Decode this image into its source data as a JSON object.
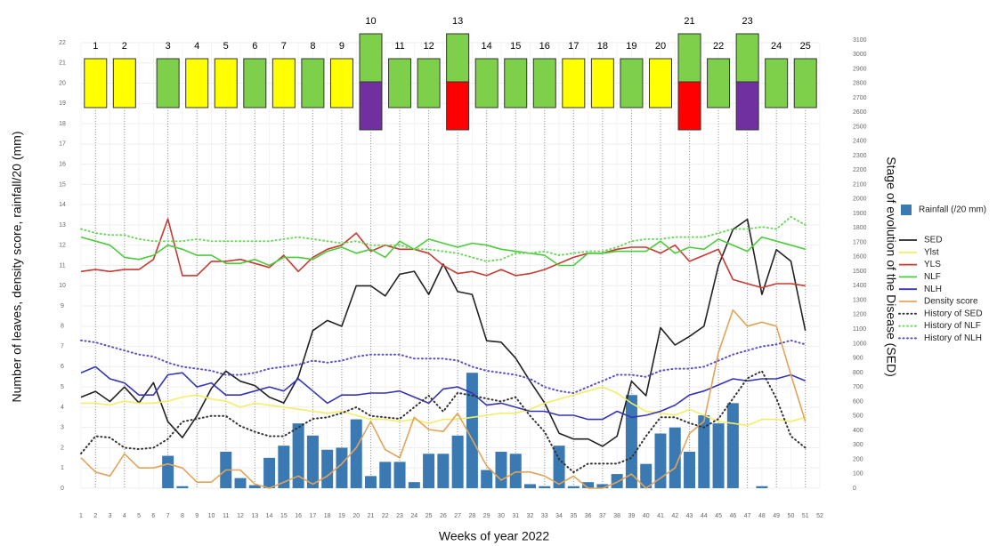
{
  "chart_data": {
    "type": "combo",
    "x_label": "Weeks of year 2022",
    "y_label": "Number of leaves, density score, rainfall/20 (mm)",
    "y2_label": "Stage of evolution of the Disease (SED)",
    "x": [
      1,
      2,
      3,
      4,
      5,
      6,
      7,
      8,
      9,
      10,
      11,
      12,
      13,
      14,
      15,
      16,
      17,
      18,
      19,
      20,
      21,
      22,
      23,
      24,
      25,
      26,
      27,
      28,
      29,
      30,
      31,
      32,
      33,
      34,
      35,
      36,
      37,
      38,
      39,
      40,
      41,
      42,
      43,
      44,
      45,
      46,
      47,
      48,
      49,
      50,
      51
    ],
    "xlim": [
      1,
      52
    ],
    "xticks": [
      1,
      2,
      3,
      4,
      5,
      6,
      7,
      8,
      9,
      10,
      11,
      12,
      13,
      14,
      15,
      16,
      17,
      18,
      19,
      20,
      21,
      22,
      23,
      24,
      25,
      26,
      27,
      28,
      29,
      30,
      31,
      32,
      33,
      34,
      35,
      36,
      37,
      38,
      39,
      40,
      41,
      42,
      43,
      44,
      45,
      46,
      47,
      48,
      49,
      50,
      51,
      52
    ],
    "ylim": [
      0,
      22
    ],
    "yticks": [
      0,
      1,
      2,
      3,
      4,
      5,
      6,
      7,
      8,
      9,
      10,
      11,
      12,
      13,
      14,
      15,
      16,
      17,
      18,
      19,
      20,
      21,
      22
    ],
    "y2lim": [
      0,
      3100
    ],
    "y2ticks": [
      0,
      100,
      200,
      300,
      400,
      500,
      600,
      700,
      800,
      900,
      1000,
      1100,
      1200,
      1300,
      1400,
      1500,
      1600,
      1700,
      1800,
      1900,
      2000,
      2100,
      2200,
      2300,
      2400,
      2500,
      2600,
      2700,
      2800,
      2900,
      3000,
      3100
    ],
    "grid": true,
    "legend": "right",
    "series": [
      {
        "name": "Rainfall (/20 mm)",
        "type": "bar",
        "color": "#3b79b3",
        "values": [
          0,
          0,
          0,
          0,
          0,
          0,
          1.6,
          0.1,
          0,
          0,
          1.8,
          0.5,
          0.15,
          1.5,
          2.1,
          3.2,
          2.6,
          1.9,
          2.0,
          3.4,
          0.6,
          1.3,
          1.3,
          0.3,
          1.7,
          1.7,
          2.6,
          5.7,
          0.9,
          1.8,
          1.7,
          0.2,
          0.1,
          2.1,
          0.1,
          0.3,
          0.2,
          0.7,
          4.6,
          1.2,
          2.7,
          3.0,
          1.8,
          3.6,
          3.2,
          4.2,
          0,
          0.1,
          0,
          0,
          0
        ]
      },
      {
        "name": "SED",
        "type": "line",
        "axis": "y2",
        "color": "#222222",
        "values": [
          630,
          670,
          600,
          700,
          590,
          730,
          460,
          350,
          500,
          690,
          810,
          740,
          710,
          630,
          590,
          770,
          1090,
          1160,
          1120,
          1400,
          1400,
          1330,
          1480,
          1500,
          1340,
          1550,
          1360,
          1340,
          1020,
          1010,
          900,
          740,
          590,
          380,
          340,
          340,
          290,
          360,
          740,
          640,
          1110,
          990,
          1050,
          1120,
          1540,
          1790,
          1860,
          1340,
          1650,
          1570,
          1090
        ]
      },
      {
        "name": "Ylst",
        "type": "line",
        "color": "#f2ee6a",
        "values": [
          4.2,
          4.2,
          4.1,
          4.3,
          4.2,
          4.2,
          4.3,
          4.5,
          4.6,
          4.4,
          4.3,
          4.0,
          4.2,
          4.1,
          4.0,
          3.9,
          3.8,
          3.7,
          3.8,
          3.6,
          3.4,
          3.4,
          3.3,
          3.4,
          3.2,
          3.4,
          3.4,
          3.5,
          3.6,
          3.7,
          3.7,
          3.9,
          4.2,
          4.4,
          4.6,
          4.8,
          5.0,
          4.7,
          4.2,
          3.8,
          3.7,
          3.6,
          3.9,
          3.6,
          3.3,
          3.2,
          3.1,
          3.4,
          3.4,
          3.3,
          3.5
        ]
      },
      {
        "name": "YLS",
        "type": "line",
        "color": "#c83a32",
        "values": [
          10.7,
          10.8,
          10.7,
          10.8,
          10.8,
          11.3,
          13.3,
          10.5,
          10.5,
          11.2,
          11.2,
          11.3,
          11.1,
          10.9,
          11.5,
          10.7,
          11.4,
          11.8,
          12.0,
          12.6,
          11.7,
          12.0,
          11.8,
          11.8,
          11.6,
          11.0,
          10.6,
          10.7,
          10.5,
          10.8,
          10.5,
          10.6,
          10.8,
          11.1,
          11.4,
          11.6,
          11.6,
          11.8,
          11.9,
          11.9,
          11.6,
          12.0,
          11.2,
          11.5,
          11.8,
          10.3,
          10.1,
          9.9,
          10.1,
          10.1,
          10.0
        ]
      },
      {
        "name": "NLF",
        "type": "line",
        "color": "#4ccc3c",
        "values": [
          12.4,
          12.2,
          12.0,
          11.4,
          11.3,
          11.5,
          12.0,
          11.8,
          11.5,
          11.5,
          11.1,
          11.1,
          11.3,
          11.0,
          11.4,
          11.4,
          11.3,
          11.7,
          11.9,
          11.6,
          11.8,
          11.4,
          12.2,
          11.8,
          12.3,
          12.1,
          11.9,
          12.1,
          12.0,
          11.8,
          11.7,
          11.6,
          11.5,
          11.0,
          11.0,
          11.6,
          11.6,
          11.7,
          11.7,
          11.7,
          12.2,
          11.6,
          11.9,
          11.8,
          12.3,
          12.0,
          11.7,
          12.4,
          12.2,
          12.0,
          11.8
        ]
      },
      {
        "name": "NLH",
        "type": "line",
        "color": "#3535b8",
        "values": [
          5.7,
          6.0,
          5.4,
          5.2,
          4.6,
          4.6,
          5.6,
          5.7,
          5.0,
          5.2,
          4.6,
          4.6,
          4.8,
          5.0,
          4.8,
          5.4,
          4.8,
          4.2,
          4.6,
          4.6,
          4.7,
          4.7,
          4.8,
          4.5,
          4.2,
          4.9,
          5.0,
          4.7,
          4.1,
          4.2,
          4.0,
          3.8,
          3.8,
          3.6,
          3.6,
          3.4,
          3.4,
          3.8,
          3.5,
          3.6,
          3.8,
          4.1,
          4.6,
          4.8,
          5.1,
          5.4,
          5.3,
          5.4,
          5.4,
          5.6,
          5.3
        ]
      },
      {
        "name": "Density score",
        "type": "line",
        "color": "#e2a458",
        "values": [
          1.5,
          0.8,
          0.6,
          1.7,
          1.0,
          1.0,
          1.2,
          1.0,
          0.3,
          0.3,
          0.9,
          0.9,
          0.2,
          0,
          0.3,
          0.6,
          0.2,
          0.6,
          1.2,
          2.0,
          3.3,
          1.9,
          1.5,
          3.5,
          2.9,
          2.8,
          3.7,
          2.4,
          1.1,
          0.4,
          0.8,
          0.8,
          0.6,
          0.2,
          0.6,
          0,
          0,
          0.3,
          0.7,
          0,
          0.5,
          1.0,
          2.7,
          3.3,
          6.7,
          8.8,
          8.0,
          8.2,
          8.0,
          5.6,
          3.3
        ]
      },
      {
        "name": "History of SED",
        "type": "line",
        "style": "dotted",
        "axis": "y2",
        "color": "#333333",
        "values": [
          240,
          360,
          350,
          280,
          270,
          280,
          340,
          460,
          480,
          500,
          500,
          430,
          390,
          360,
          360,
          420,
          480,
          490,
          520,
          560,
          500,
          490,
          480,
          560,
          640,
          530,
          660,
          640,
          620,
          600,
          630,
          500,
          390,
          200,
          110,
          170,
          170,
          170,
          210,
          360,
          490,
          490,
          450,
          420,
          480,
          620,
          760,
          810,
          620,
          360,
          280
        ]
      },
      {
        "name": "History of NLF",
        "type": "line",
        "style": "dotted",
        "color": "#6ed860",
        "values": [
          12.8,
          12.6,
          12.5,
          12.5,
          12.3,
          12.2,
          12.2,
          12.2,
          12.3,
          12.2,
          12.2,
          12.2,
          12.2,
          12.2,
          12.3,
          12.4,
          12.3,
          12.2,
          12.1,
          12.2,
          12.0,
          12.0,
          12.0,
          11.8,
          11.8,
          11.7,
          11.6,
          11.4,
          11.2,
          11.3,
          11.6,
          11.6,
          11.7,
          11.5,
          11.6,
          11.7,
          11.7,
          11.9,
          12.2,
          12.3,
          12.3,
          12.4,
          12.4,
          12.4,
          12.6,
          12.8,
          12.8,
          12.9,
          12.8,
          13.4,
          13.0
        ]
      },
      {
        "name": "History of NLH",
        "type": "line",
        "style": "dotted",
        "color": "#5a50c8",
        "values": [
          7.3,
          7.2,
          7.0,
          6.8,
          6.6,
          6.5,
          6.2,
          6.0,
          5.9,
          5.8,
          5.6,
          5.6,
          5.7,
          5.9,
          6.0,
          6.1,
          6.3,
          6.2,
          6.3,
          6.5,
          6.6,
          6.6,
          6.6,
          6.4,
          6.4,
          6.4,
          6.3,
          6.0,
          5.8,
          5.7,
          5.6,
          5.4,
          5.0,
          4.8,
          4.7,
          5.0,
          5.3,
          5.6,
          5.6,
          5.5,
          5.8,
          5.9,
          5.9,
          6.0,
          6.3,
          6.6,
          6.8,
          7.0,
          7.1,
          7.3,
          7.1
        ]
      }
    ],
    "stages": [
      {
        "label": "1",
        "week": 2,
        "colors": [
          "#ffff00"
        ]
      },
      {
        "label": "2",
        "week": 4,
        "colors": [
          "#ffff00"
        ]
      },
      {
        "label": "3",
        "week": 7,
        "colors": [
          "#7ed04b"
        ]
      },
      {
        "label": "4",
        "week": 9,
        "colors": [
          "#ffff00"
        ]
      },
      {
        "label": "5",
        "week": 11,
        "colors": [
          "#ffff00"
        ]
      },
      {
        "label": "6",
        "week": 13,
        "colors": [
          "#7ed04b"
        ]
      },
      {
        "label": "7",
        "week": 15,
        "colors": [
          "#ffff00"
        ]
      },
      {
        "label": "8",
        "week": 17,
        "colors": [
          "#7ed04b"
        ]
      },
      {
        "label": "9",
        "week": 19,
        "colors": [
          "#ffff00"
        ]
      },
      {
        "label": "10",
        "week": 21,
        "colors": [
          "#7ed04b",
          "#7030a0"
        ]
      },
      {
        "label": "11",
        "week": 23,
        "colors": [
          "#7ed04b"
        ]
      },
      {
        "label": "12",
        "week": 25,
        "colors": [
          "#7ed04b"
        ]
      },
      {
        "label": "13",
        "week": 27,
        "colors": [
          "#7ed04b",
          "#ff0000"
        ]
      },
      {
        "label": "14",
        "week": 29,
        "colors": [
          "#7ed04b"
        ]
      },
      {
        "label": "15",
        "week": 31,
        "colors": [
          "#7ed04b"
        ]
      },
      {
        "label": "16",
        "week": 33,
        "colors": [
          "#7ed04b"
        ]
      },
      {
        "label": "17",
        "week": 35,
        "colors": [
          "#ffff00"
        ]
      },
      {
        "label": "18",
        "week": 37,
        "colors": [
          "#ffff00"
        ]
      },
      {
        "label": "19",
        "week": 39,
        "colors": [
          "#7ed04b"
        ]
      },
      {
        "label": "20",
        "week": 41,
        "colors": [
          "#ffff00"
        ]
      },
      {
        "label": "21",
        "week": 43,
        "colors": [
          "#7ed04b",
          "#ff0000"
        ]
      },
      {
        "label": "22",
        "week": 45,
        "colors": [
          "#7ed04b"
        ]
      },
      {
        "label": "23",
        "week": 47,
        "colors": [
          "#7ed04b",
          "#7030a0"
        ]
      },
      {
        "label": "24",
        "week": 49,
        "colors": [
          "#7ed04b"
        ]
      },
      {
        "label": "25",
        "week": 51,
        "colors": [
          "#7ed04b"
        ]
      }
    ]
  }
}
